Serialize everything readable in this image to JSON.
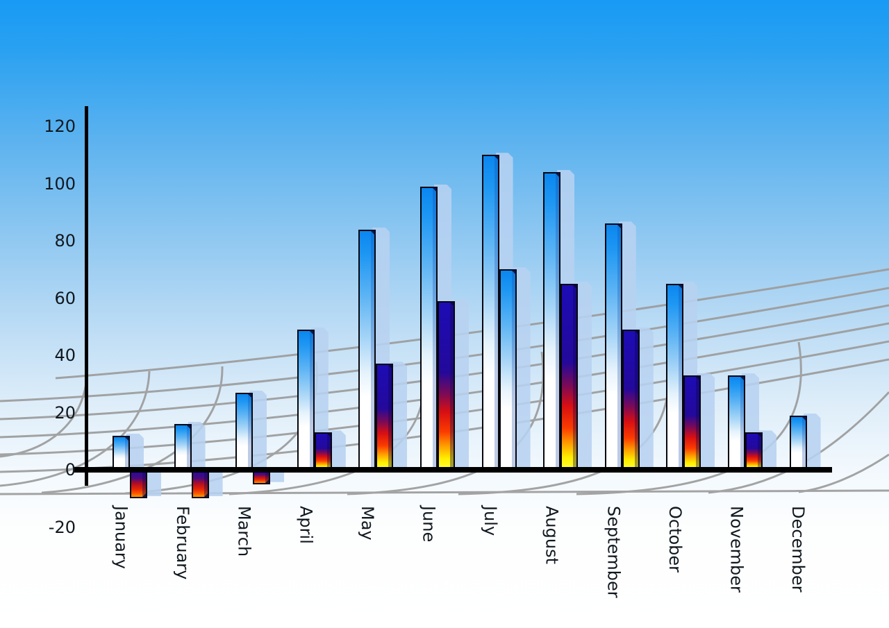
{
  "chart_data": {
    "type": "bar",
    "title": "",
    "categories": [
      "January",
      "February",
      "March",
      "April",
      "May",
      "June",
      "July",
      "August",
      "September",
      "October",
      "November",
      "December"
    ],
    "series": [
      {
        "name": "primary-blue-bars",
        "style": "blue-gradient",
        "values": [
          12,
          16,
          27,
          49,
          84,
          99,
          110,
          104,
          86,
          65,
          33,
          19
        ]
      },
      {
        "name": "secondary-bars",
        "style": "fire-gradient (navy-red-yellow), July rendered in blue gradient, December absent",
        "values": [
          -10,
          -10,
          -5,
          13,
          37,
          59,
          70,
          65,
          49,
          33,
          13,
          null
        ],
        "styles": [
          "fire",
          "fire",
          "fire",
          "fire",
          "fire",
          "fire",
          "blue",
          "fire",
          "fire",
          "fire",
          "fire",
          null
        ]
      }
    ],
    "y_axis": {
      "ticks": [
        120,
        100,
        80,
        60,
        40,
        20,
        0,
        -20
      ],
      "min": -20,
      "max": 120,
      "gridlines": false
    },
    "x_axis": {
      "labels_rotated_90deg_clockwise": true
    },
    "legend": null,
    "background": "sky-blue vertical gradient with gray perspective mesh",
    "bar_drop_shadows": "pale translucent blue copies offset right"
  },
  "colors": {
    "sky_top": "#189af5",
    "sky_bottom": "#ffffff",
    "bar_blue_top": "#0a86ef",
    "bar_blue_bottom": "#ffffff",
    "fire_navy": "#1d0cb5",
    "fire_red": "#d80f12",
    "fire_yellow": "#ffff33",
    "shadow": "#b7d1f0",
    "mesh_gray": "#9c9c9c",
    "axis_black": "#000000",
    "label_text": "#10181f"
  }
}
